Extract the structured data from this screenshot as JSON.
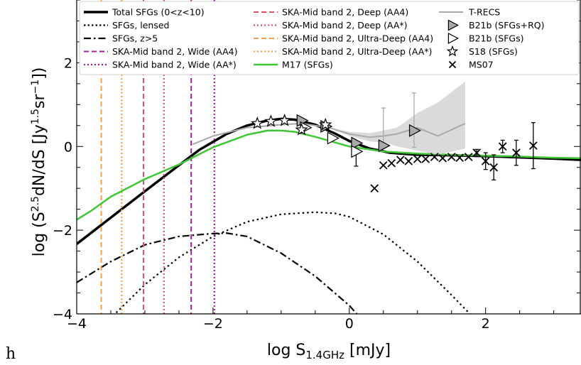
{
  "panel_tag": "h",
  "chart_data": {
    "type": "line",
    "xlabel": "log S_1.4GHz [mJy]",
    "ylabel": "log (S^2.5 dN/dS [Jy^1.5 sr^-1])",
    "xlim": [
      -4,
      3.4
    ],
    "ylim": [
      -4,
      3.5
    ],
    "xticks": [
      -4,
      -2,
      0,
      2
    ],
    "yticks": [
      -4,
      -2,
      0,
      2
    ],
    "grid": false,
    "legend_position": "top",
    "series": [
      {
        "name": "Total SFGs (0<z<10)",
        "color": "#000000",
        "style": "solid-thick",
        "x": [
          -4,
          -3.5,
          -3,
          -2.5,
          -2.2,
          -1.8,
          -1.5,
          -1.2,
          -1,
          -0.8,
          -0.5,
          -0.2,
          0,
          0.3,
          0.6,
          1,
          1.5,
          2,
          2.5,
          3,
          3.4
        ],
        "y": [
          -2.33,
          -1.7,
          -1.07,
          -0.45,
          -0.08,
          0.3,
          0.5,
          0.62,
          0.66,
          0.64,
          0.52,
          0.3,
          0.13,
          -0.05,
          -0.15,
          -0.2,
          -0.21,
          -0.23,
          -0.26,
          -0.29,
          -0.32
        ]
      },
      {
        "name": "SFGs, lensed",
        "color": "#000000",
        "style": "dotted",
        "x": [
          -4,
          -3.5,
          -3,
          -2.5,
          -2,
          -1.5,
          -1,
          -0.5,
          -0.2,
          0,
          0.5,
          1,
          1.5,
          1.8
        ],
        "y": [
          -4.9,
          -4.1,
          -3.3,
          -2.65,
          -2.15,
          -1.8,
          -1.62,
          -1.57,
          -1.6,
          -1.68,
          -2.1,
          -2.75,
          -3.55,
          -4.05
        ]
      },
      {
        "name": "SFGs, z>5",
        "color": "#000000",
        "style": "dashdot",
        "x": [
          -4,
          -3.5,
          -3,
          -2.5,
          -2,
          -1.8,
          -1.5,
          -1,
          -0.5,
          0,
          0.3
        ],
        "y": [
          -3.25,
          -2.75,
          -2.35,
          -2.15,
          -2.08,
          -2.07,
          -2.15,
          -2.55,
          -3.1,
          -3.8,
          -4.35
        ]
      },
      {
        "name": "SKA-Mid band 2, Wide (AA4)",
        "color": "#a02196",
        "style": "dashed",
        "vline": -2.32
      },
      {
        "name": "SKA-Mid band 2, Wide (AA*)",
        "color": "#a02196",
        "style": "dotted",
        "vline": -1.98
      },
      {
        "name": "SKA-Mid band 2, Deep (AA4)",
        "color": "#e0506a",
        "style": "dashed",
        "vline": -3.02
      },
      {
        "name": "SKA-Mid band 2, Deep (AA*)",
        "color": "#e0506a",
        "style": "dotted",
        "vline": -2.72
      },
      {
        "name": "SKA-Mid band 2, Ultra-Deep (AA4)",
        "color": "#f5a04a",
        "style": "dashed",
        "vline": -3.64
      },
      {
        "name": "SKA-Mid band 2, Ultra-Deep (AA*)",
        "color": "#f5a04a",
        "style": "dotted",
        "vline": -3.34
      },
      {
        "name": "M17 (SFGs)",
        "color": "#3ec634",
        "style": "solid",
        "x": [
          -4,
          -3.8,
          -3.5,
          -3,
          -2.5,
          -2,
          -1.5,
          -1.2,
          -1,
          -0.8,
          -0.5,
          0,
          0.5,
          1,
          1.5,
          2,
          2.5,
          3,
          3.4
        ],
        "y": [
          -1.75,
          -1.55,
          -1.2,
          -0.78,
          -0.43,
          -0.02,
          0.28,
          0.38,
          0.38,
          0.35,
          0.23,
          0.0,
          -0.12,
          -0.17,
          -0.2,
          -0.22,
          -0.24,
          -0.27,
          -0.28
        ]
      },
      {
        "name": "T-RECS",
        "color": "#a9a9a9",
        "style": "solid-band",
        "x": [
          -2.3,
          -2,
          -1.5,
          -1,
          -0.7,
          -0.3,
          0,
          0.3,
          0.5,
          0.7,
          1,
          1.3,
          1.7
        ],
        "y": [
          0.05,
          0.25,
          0.45,
          0.52,
          0.55,
          0.45,
          0.3,
          0.22,
          0.25,
          0.3,
          0.45,
          0.25,
          0.55
        ],
        "band_upper": [
          0.05,
          0.25,
          0.45,
          0.52,
          0.55,
          0.45,
          0.35,
          0.32,
          0.38,
          0.45,
          0.8,
          1.05,
          1.55
        ],
        "band_lower": [
          0.05,
          0.25,
          0.45,
          0.52,
          0.55,
          0.45,
          0.25,
          0.12,
          0.1,
          0.0,
          -0.1,
          -0.2,
          -0.05
        ]
      }
    ],
    "points": [
      {
        "name": "B21b (SFGs+RQ)",
        "marker": "triangle-right-filled",
        "x": [
          -0.7,
          -0.35,
          0.1,
          0.5,
          0.95
        ],
        "y": [
          0.62,
          0.48,
          0.08,
          0.02,
          0.38
        ],
        "yerr_low": [
          0.05,
          0.05,
          0.05,
          0.05,
          0.4
        ],
        "yerr_high": [
          0.05,
          0.05,
          0.05,
          0.9,
          0.9
        ]
      },
      {
        "name": "B21b (SFGs)",
        "marker": "triangle-right-open",
        "x": [
          -0.65,
          -0.25,
          0.1
        ],
        "y": [
          0.45,
          0.2,
          -0.12
        ],
        "yerr_low": [
          0.05,
          0.05,
          0.35
        ],
        "yerr_high": [
          0.05,
          0.05,
          0.05
        ]
      },
      {
        "name": "S18 (SFGs)",
        "marker": "star-open",
        "x": [
          -1.35,
          -1.15,
          -0.95,
          -0.7,
          -0.35
        ],
        "y": [
          0.55,
          0.6,
          0.62,
          0.4,
          0.52
        ],
        "yerr_low": [
          0.05,
          0.05,
          0.05,
          0.05,
          0.05
        ],
        "yerr_high": [
          0.05,
          0.05,
          0.05,
          0.05,
          0.05
        ]
      },
      {
        "name": "MS07",
        "marker": "x",
        "x": [
          0.37,
          0.5,
          0.62,
          0.75,
          0.87,
          1.0,
          1.12,
          1.25,
          1.37,
          1.5,
          1.62,
          1.75,
          1.87,
          2.0,
          2.12,
          2.25,
          2.45,
          2.7
        ],
        "y": [
          -1.0,
          -0.45,
          -0.4,
          -0.32,
          -0.35,
          -0.3,
          -0.3,
          -0.25,
          -0.28,
          -0.25,
          -0.27,
          -0.25,
          -0.15,
          -0.35,
          -0.5,
          0.0,
          -0.15,
          0.02
        ],
        "yerr": [
          0,
          0,
          0,
          0,
          0,
          0,
          0,
          0,
          0,
          0,
          0,
          0,
          0.08,
          0.2,
          0.3,
          0.15,
          0.3,
          0.55
        ]
      }
    ]
  }
}
